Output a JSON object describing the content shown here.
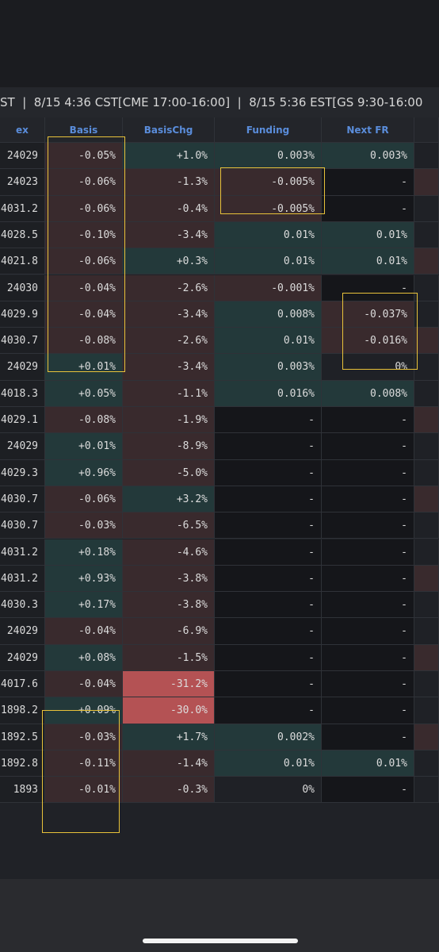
{
  "header_bar": {
    "text": "ST  |  8/15 4:36 CST[CME 17:00-16:00]  |  8/15 5:36 EST[GS 9:30-16:00"
  },
  "table": {
    "columns": [
      "ex",
      "Basis",
      "BasisChg",
      "Funding",
      "Next FR"
    ],
    "rows": [
      [
        "24029",
        "-0.05%",
        "+1.0%",
        "0.003%",
        "0.003%"
      ],
      [
        "24023",
        "-0.06%",
        "-1.3%",
        "-0.005%",
        "-"
      ],
      [
        "4031.2",
        "-0.06%",
        "-0.4%",
        "-0.005%",
        "-"
      ],
      [
        "4028.5",
        "-0.10%",
        "-3.4%",
        "0.01%",
        "0.01%"
      ],
      [
        "4021.8",
        "-0.06%",
        "+0.3%",
        "0.01%",
        "0.01%"
      ],
      [
        "24030",
        "-0.04%",
        "-2.6%",
        "-0.001%",
        "-"
      ],
      [
        "4029.9",
        "-0.04%",
        "-3.4%",
        "0.008%",
        "-0.037%"
      ],
      [
        "4030.7",
        "-0.08%",
        "-2.6%",
        "0.01%",
        "-0.016%"
      ],
      [
        "24029",
        "+0.01%",
        "-3.4%",
        "0.003%",
        "0%"
      ],
      [
        "4018.3",
        "+0.05%",
        "-1.1%",
        "0.016%",
        "0.008%"
      ],
      [
        "4029.1",
        "-0.08%",
        "-1.9%",
        "-",
        "-"
      ],
      [
        "24029",
        "+0.01%",
        "-8.9%",
        "-",
        "-"
      ],
      [
        "4029.3",
        "+0.96%",
        "-5.0%",
        "-",
        "-"
      ],
      [
        "4030.7",
        "-0.06%",
        "+3.2%",
        "-",
        "-"
      ],
      [
        "4030.7",
        "-0.03%",
        "-6.5%",
        "-",
        "-"
      ],
      [
        "4031.2",
        "+0.18%",
        "-4.6%",
        "-",
        "-"
      ],
      [
        "4031.2",
        "+0.93%",
        "-3.8%",
        "-",
        "-"
      ],
      [
        "4030.3",
        "+0.17%",
        "-3.8%",
        "-",
        "-"
      ],
      [
        "24029",
        "-0.04%",
        "-6.9%",
        "-",
        "-"
      ],
      [
        "24029",
        "+0.08%",
        "-1.5%",
        "-",
        "-"
      ],
      [
        "4017.6",
        "-0.04%",
        "-31.2%",
        "-",
        "-"
      ],
      [
        "1898.2",
        "+0.09%",
        "-30.0%",
        "-",
        "-"
      ],
      [
        "1892.5",
        "-0.03%",
        "+1.7%",
        "0.002%",
        "-"
      ],
      [
        "1892.8",
        "-0.11%",
        "-1.4%",
        "0.01%",
        "0.01%"
      ],
      [
        "1893",
        "-0.01%",
        "-0.3%",
        "0%",
        "-"
      ]
    ]
  }
}
